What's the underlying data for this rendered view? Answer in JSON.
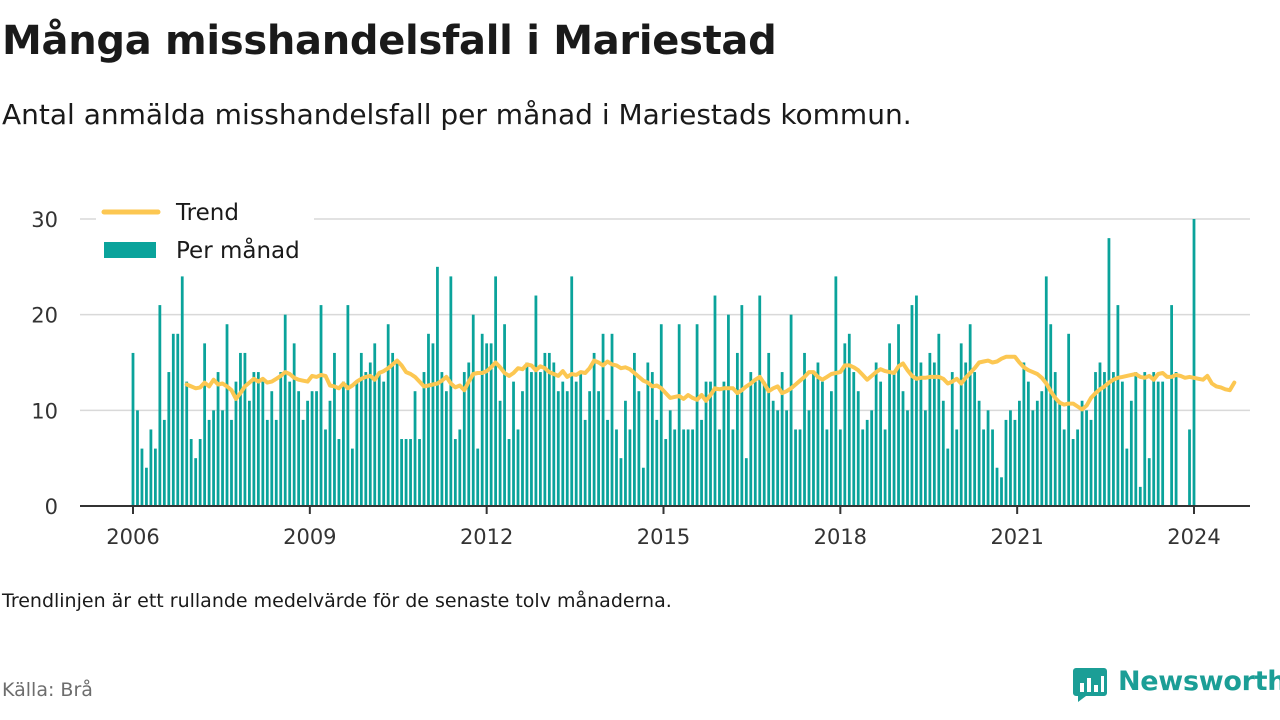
{
  "title": "Många misshandelsfall i Mariestad",
  "subtitle": "Antal anmälda misshandelsfall per månad i Mariestads kommun.",
  "note": "Trendlinjen är ett rullande medelvärde för de senaste tolv månaderna.",
  "source": "Källa: Brå",
  "brand": {
    "name": "Newsworthy",
    "icon": "newsworthy-logo-icon",
    "color": "#1b9e96"
  },
  "chart_data": {
    "type": "bar",
    "title": "",
    "xlabel": "",
    "ylabel": "",
    "ylim": [
      0,
      30
    ],
    "yticks": [
      0,
      10,
      20,
      30
    ],
    "xticks": [
      "2006",
      "2009",
      "2012",
      "2015",
      "2018",
      "2021",
      "2024"
    ],
    "grid": true,
    "legend_position": "top-left",
    "colors": {
      "bar": "#0aa39b",
      "trend": "#fcc752",
      "grid": "#d9d9d9",
      "axis": "#333333"
    },
    "x_start": "2006-01",
    "x_end": "2024-01",
    "series": [
      {
        "name": "Per månad",
        "kind": "bar",
        "values": [
          16,
          10,
          6,
          4,
          8,
          6,
          21,
          9,
          14,
          18,
          18,
          24,
          13,
          7,
          5,
          7,
          17,
          9,
          10,
          14,
          10,
          19,
          9,
          13,
          16,
          16,
          11,
          14,
          14,
          13,
          9,
          12,
          9,
          14,
          20,
          13,
          17,
          12,
          9,
          11,
          12,
          12,
          21,
          8,
          11,
          16,
          7,
          13,
          21,
          6,
          13,
          16,
          14,
          15,
          17,
          14,
          13,
          19,
          16,
          15,
          7,
          7,
          7,
          12,
          7,
          14,
          18,
          17,
          25,
          14,
          12,
          24,
          7,
          8,
          14,
          15,
          20,
          6,
          18,
          17,
          17,
          24,
          11,
          19,
          7,
          13,
          8,
          12,
          15,
          14,
          22,
          14,
          16,
          16,
          15,
          12,
          13,
          12,
          24,
          13,
          14,
          9,
          12,
          16,
          12,
          18,
          9,
          18,
          8,
          5,
          11,
          8,
          16,
          12,
          4,
          15,
          14,
          9,
          19,
          7,
          10,
          8,
          19,
          8,
          8,
          8,
          19,
          9,
          13,
          13,
          22,
          8,
          13,
          20,
          8,
          16,
          21,
          5,
          14,
          13,
          22,
          13,
          16,
          11,
          10,
          14,
          10,
          20,
          8,
          8,
          16,
          10,
          14,
          15,
          13,
          8,
          12,
          24,
          8,
          17,
          18,
          14,
          12,
          8,
          9,
          10,
          15,
          13,
          8,
          17,
          14,
          19,
          12,
          10,
          21,
          22,
          15,
          10,
          16,
          15,
          18,
          11,
          6,
          14,
          8,
          17,
          15,
          19,
          14,
          11,
          8,
          10,
          8,
          4,
          3,
          9,
          10,
          9,
          11,
          15,
          13,
          10,
          11,
          12,
          24,
          19,
          14,
          11,
          8,
          18,
          7,
          8,
          11,
          10,
          9,
          14,
          15,
          14,
          28,
          14,
          21,
          13,
          6,
          11,
          14,
          2,
          14,
          5,
          14,
          13,
          13,
          0,
          21,
          14,
          0,
          0,
          8,
          30
        ]
      },
      {
        "name": "Trend",
        "kind": "line",
        "start_index": 12,
        "values": [
          12.7,
          12.5,
          12.3,
          12.4,
          12.9,
          12.5,
          13.2,
          12.7,
          12.8,
          12.5,
          12.1,
          11.2,
          11.8,
          12.5,
          12.9,
          13.3,
          13.0,
          13.3,
          12.9,
          13.0,
          13.3,
          13.6,
          14.0,
          13.8,
          13.4,
          13.2,
          13.1,
          13.0,
          13.6,
          13.5,
          13.7,
          13.6,
          12.6,
          12.5,
          12.3,
          12.8,
          12.3,
          12.6,
          13.0,
          13.3,
          13.5,
          13.6,
          13.2,
          13.9,
          14.1,
          14.4,
          14.8,
          15.2,
          14.7,
          14.0,
          13.8,
          13.5,
          13.0,
          12.5,
          12.6,
          12.7,
          12.8,
          13.1,
          13.5,
          12.8,
          12.4,
          12.6,
          12.1,
          13.0,
          13.8,
          13.9,
          13.9,
          14.1,
          14.5,
          15.0,
          14.5,
          13.9,
          13.6,
          13.9,
          14.4,
          14.3,
          14.8,
          14.7,
          14.2,
          14.6,
          14.4,
          14.0,
          13.8,
          13.6,
          14.1,
          13.5,
          13.8,
          13.7,
          14.0,
          13.9,
          14.4,
          15.2,
          15.0,
          14.7,
          15.1,
          14.8,
          14.7,
          14.4,
          14.5,
          14.3,
          13.9,
          13.5,
          13.1,
          12.9,
          12.5,
          12.6,
          12.3,
          11.8,
          11.3,
          11.4,
          11.5,
          11.2,
          11.6,
          11.3,
          11.1,
          11.6,
          11.0,
          11.6,
          12.3,
          12.2,
          12.3,
          12.3,
          12.3,
          11.8,
          12.1,
          12.5,
          12.8,
          13.2,
          13.5,
          12.8,
          12.0,
          12.3,
          12.5,
          11.8,
          12.0,
          12.3,
          12.7,
          13.1,
          13.5,
          14.0,
          14.0,
          13.5,
          13.2,
          13.5,
          13.8,
          13.9,
          14.0,
          14.7,
          14.7,
          14.5,
          14.2,
          13.7,
          13.2,
          13.6,
          14.0,
          14.3,
          14.1,
          14.0,
          13.9,
          14.6,
          14.9,
          14.2,
          13.6,
          13.3,
          13.4,
          13.4,
          13.5,
          13.5,
          13.5,
          13.3,
          12.8,
          13.0,
          13.3,
          12.8,
          13.4,
          13.9,
          14.4,
          15.0,
          15.1,
          15.2,
          15.0,
          15.1,
          15.4,
          15.6,
          15.6,
          15.6,
          15.0,
          14.5,
          14.2,
          14.0,
          13.8,
          13.4,
          12.8,
          12.0,
          11.3,
          10.8,
          10.6,
          10.7,
          10.7,
          10.4,
          10.1,
          10.5,
          11.3,
          11.8,
          12.2,
          12.5,
          12.9,
          13.2,
          13.4,
          13.5,
          13.6,
          13.7,
          13.8,
          13.5,
          13.4,
          13.6,
          13.2,
          13.8,
          13.9,
          13.5,
          13.5,
          13.7,
          13.6,
          13.4,
          13.5,
          13.4,
          13.3,
          13.2,
          13.6,
          12.8,
          12.5,
          12.4,
          12.2,
          12.1,
          12.9
        ]
      }
    ]
  }
}
